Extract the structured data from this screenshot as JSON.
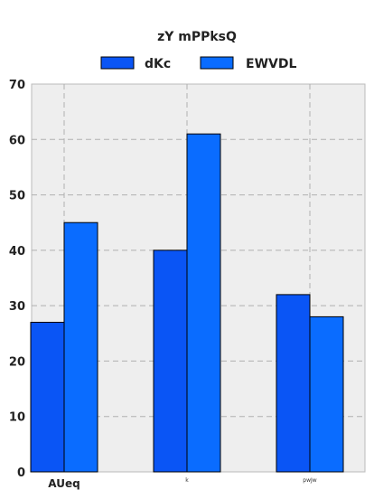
{
  "chart_data": {
    "type": "bar",
    "title": "zY mPPksQ",
    "categories": [
      "AUeq",
      "k",
      "pwJw"
    ],
    "series": [
      {
        "name": "dKc",
        "values": [
          27,
          40,
          32
        ],
        "color": "#0a55f5"
      },
      {
        "name": "EWVDL",
        "values": [
          45,
          61,
          28
        ],
        "color": "#0a6cff"
      }
    ],
    "ylim": [
      0,
      70
    ],
    "yticks": [
      "0",
      "10",
      "20",
      "30",
      "40",
      "50",
      "60",
      "70"
    ],
    "xlabel": "",
    "ylabel": "",
    "grid": true,
    "legend_position": "top",
    "background_color": "#eeeeee"
  }
}
